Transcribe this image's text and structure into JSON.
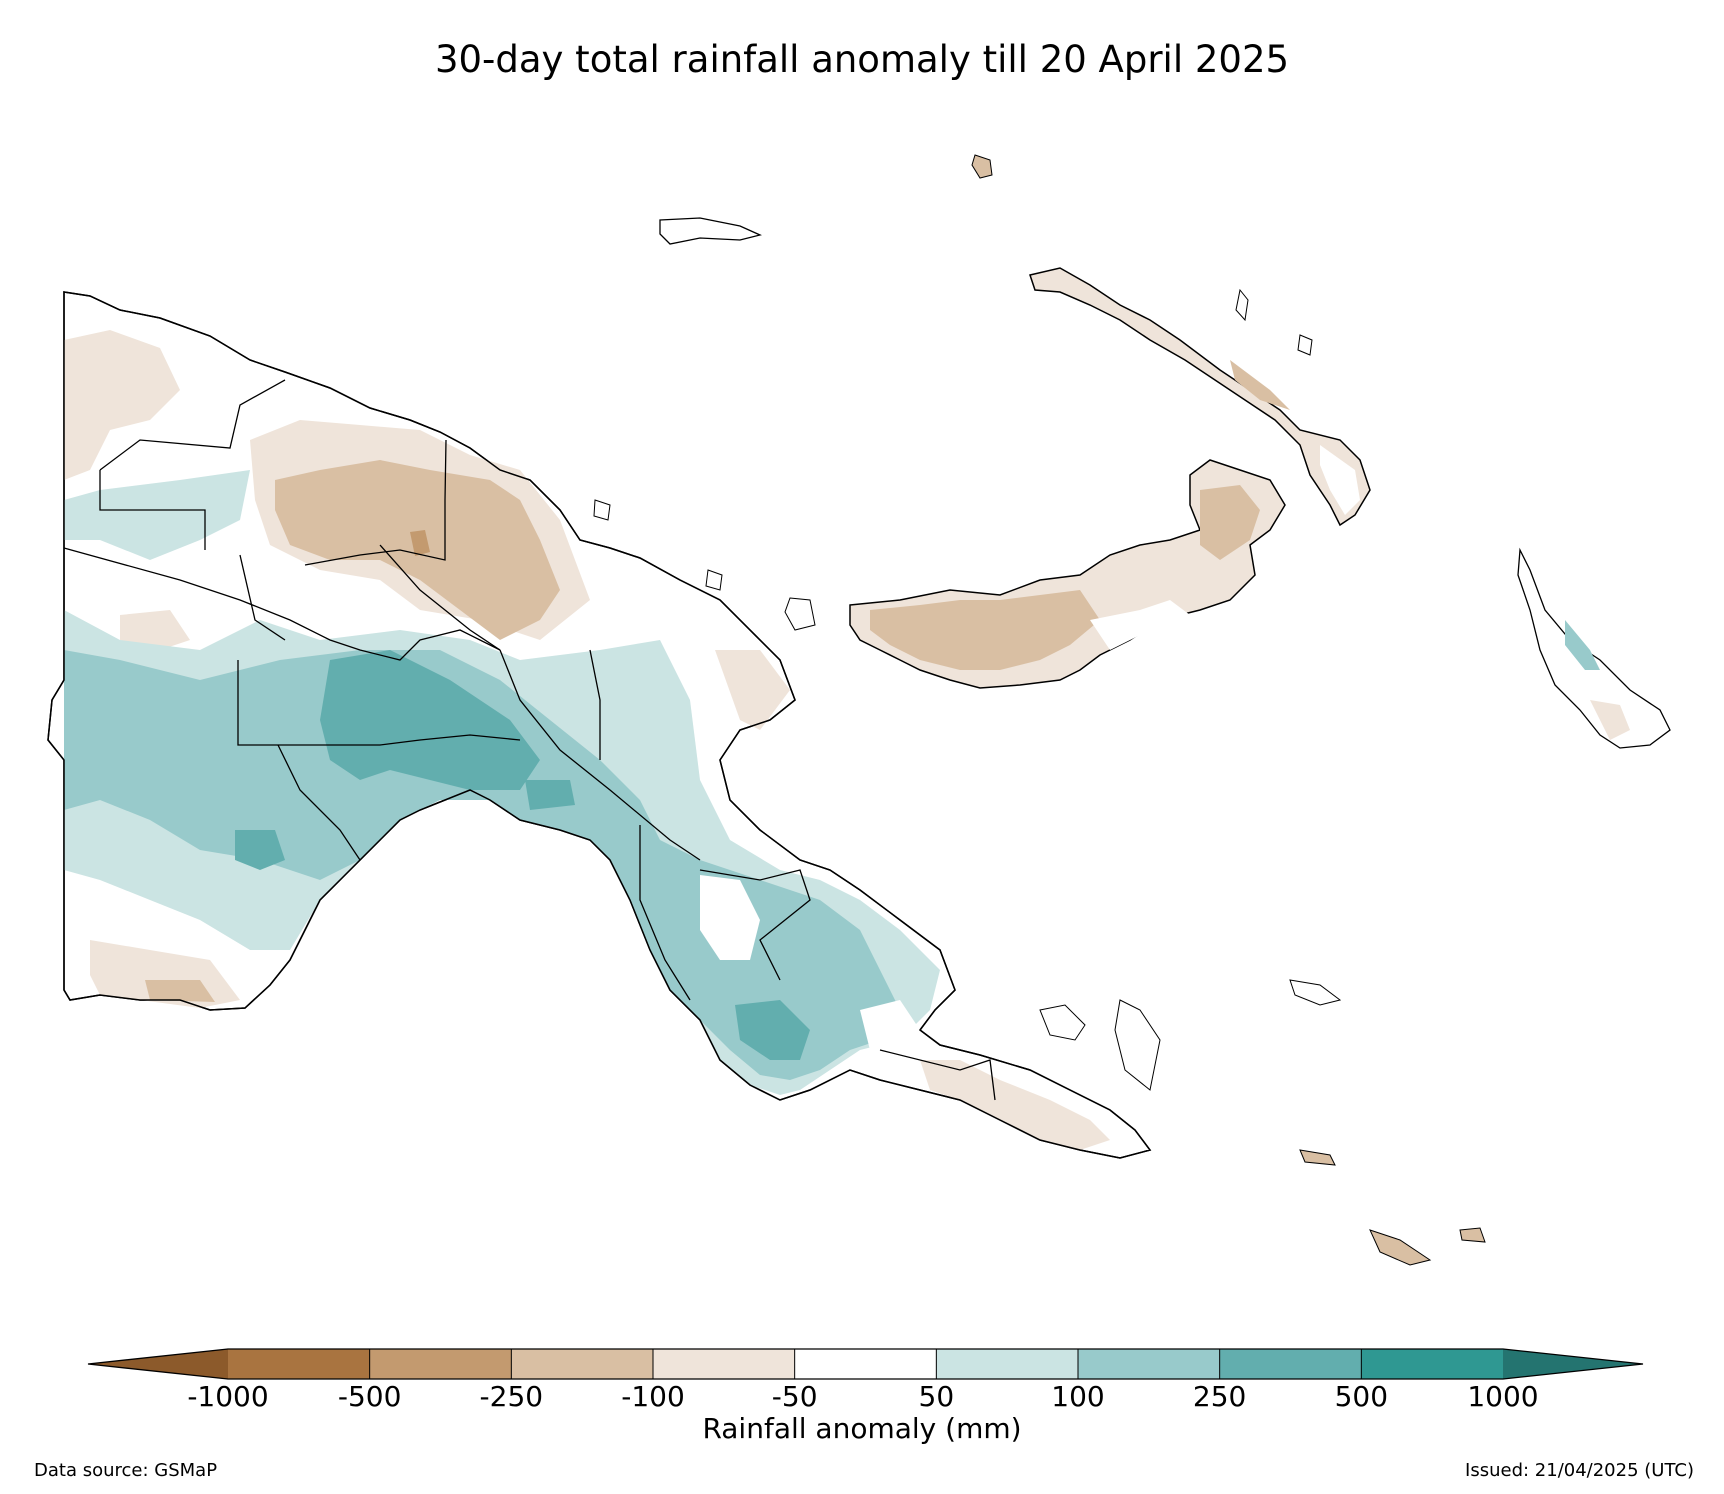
{
  "title": "30-day total rainfall anomaly till 20 April 2025",
  "colorbar": {
    "label": "Rainfall anomaly (mm)",
    "ticks": [
      "-1000",
      "-500",
      "-250",
      "-100",
      "-50",
      "50",
      "100",
      "250",
      "500",
      "1000"
    ],
    "colors": [
      "#8c5a2b",
      "#a97440",
      "#c39a6f",
      "#d9bfa3",
      "#efe4da",
      "#ffffff",
      "#cbe4e3",
      "#98cacb",
      "#62aeae",
      "#2f9892",
      "#247470"
    ]
  },
  "footer": {
    "source": "Data source: GSMaP",
    "issued": "Issued: 21/04/2025 (UTC)"
  }
}
